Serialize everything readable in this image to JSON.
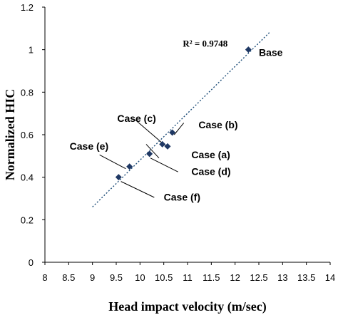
{
  "chart_data": {
    "type": "scatter",
    "xlabel": "Head impact velocity (m/sec)",
    "ylabel": "Normalized HIC",
    "xlim": [
      8,
      14
    ],
    "ylim": [
      0,
      1.2
    ],
    "x_ticks": [
      "8",
      "8.5",
      "9",
      "9.5",
      "10",
      "10.5",
      "11",
      "11.5",
      "12",
      "12.5",
      "13",
      "13.5",
      "14"
    ],
    "y_ticks": [
      "0",
      "0.2",
      "0.4",
      "0.6",
      "0.8",
      "1",
      "1.2"
    ],
    "grid": false,
    "points": [
      {
        "x": 9.55,
        "y": 0.4
      },
      {
        "x": 9.78,
        "y": 0.45
      },
      {
        "x": 10.2,
        "y": 0.51
      },
      {
        "x": 10.47,
        "y": 0.555
      },
      {
        "x": 10.58,
        "y": 0.545
      },
      {
        "x": 10.68,
        "y": 0.61
      },
      {
        "x": 12.28,
        "y": 1.0
      }
    ],
    "trendline": {
      "style": "dotted",
      "x": [
        9.0,
        12.72
      ],
      "y": [
        0.26,
        1.08
      ]
    },
    "r_squared_label": "R² = 0.9748",
    "annotations": [
      {
        "text": "Base",
        "x": 12.5,
        "y": 0.97,
        "point_index": 6
      },
      {
        "text": "Case (b)",
        "x": 11.23,
        "y": 0.63,
        "point_index": 5
      },
      {
        "text": "Case (c)",
        "x": 9.52,
        "y": 0.66,
        "point_index": 4
      },
      {
        "text": "Case (a)",
        "x": 11.08,
        "y": 0.49,
        "point_index": 3
      },
      {
        "text": "Case (d)",
        "x": 11.08,
        "y": 0.41,
        "point_index": 2
      },
      {
        "text": "Case (e)",
        "x": 8.52,
        "y": 0.53,
        "point_index": 1
      },
      {
        "text": "Case (f)",
        "x": 10.5,
        "y": 0.29,
        "point_index": 0
      }
    ],
    "leader_lines": [
      {
        "from": [
          10.72,
          0.6
        ],
        "to": [
          10.92,
          0.655
        ]
      },
      {
        "from": [
          9.9,
          0.67
        ],
        "to": [
          10.55,
          0.545
        ]
      },
      {
        "from": [
          10.13,
          0.555
        ],
        "to": [
          10.4,
          0.49
        ]
      },
      {
        "from": [
          10.22,
          0.49
        ],
        "to": [
          10.8,
          0.425
        ]
      },
      {
        "from": [
          9.15,
          0.505
        ],
        "to": [
          9.7,
          0.44
        ]
      },
      {
        "from": [
          9.6,
          0.38
        ],
        "to": [
          10.3,
          0.305
        ]
      }
    ],
    "colors": {
      "marker": "#1f3864",
      "trendline": "#1f4e79",
      "axis": "#000000",
      "leader": "#000000"
    }
  }
}
